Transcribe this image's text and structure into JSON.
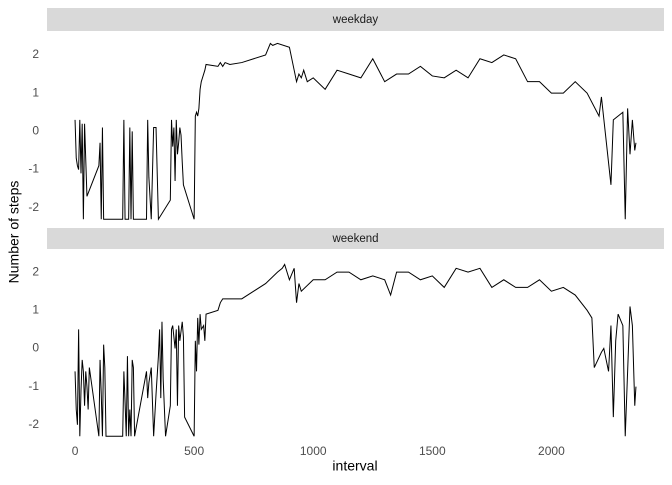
{
  "x_label": "interval",
  "y_label": "Number of steps",
  "chart_data": [
    {
      "type": "line",
      "title": "weekday",
      "color": "#000000",
      "x": [
        0,
        5,
        10,
        15,
        20,
        25,
        30,
        35,
        40,
        50,
        100,
        105,
        110,
        115,
        120,
        150,
        200,
        205,
        210,
        225,
        230,
        235,
        240,
        245,
        300,
        305,
        310,
        320,
        330,
        340,
        350,
        400,
        405,
        410,
        415,
        420,
        425,
        430,
        435,
        440,
        445,
        450,
        455,
        500,
        505,
        510,
        515,
        520,
        525,
        530,
        535,
        545,
        550,
        600,
        610,
        620,
        630,
        650,
        700,
        750,
        800,
        820,
        830,
        850,
        900,
        920,
        930,
        940,
        950,
        960,
        975,
        1000,
        1050,
        1100,
        1150,
        1200,
        1250,
        1300,
        1350,
        1400,
        1450,
        1500,
        1550,
        1600,
        1650,
        1700,
        1750,
        1800,
        1850,
        1900,
        1950,
        2000,
        2050,
        2100,
        2150,
        2200,
        2210,
        2250,
        2260,
        2300,
        2310,
        2320,
        2330,
        2340,
        2350,
        2355
      ],
      "values": [
        0.3,
        -0.7,
        -0.9,
        -1.0,
        0.3,
        -1.1,
        0.2,
        -2.3,
        0.2,
        -1.7,
        -0.9,
        -0.3,
        -2.3,
        0.1,
        -2.3,
        -2.3,
        -2.3,
        0.3,
        -2.3,
        -2.3,
        0.1,
        -2.3,
        0.0,
        -2.3,
        -2.3,
        0.3,
        -1.2,
        -2.3,
        0.1,
        0.1,
        -2.3,
        -1.8,
        0.3,
        -0.4,
        0.1,
        -1.3,
        0.3,
        -0.6,
        -0.3,
        0.1,
        -0.1,
        -0.8,
        -1.4,
        -2.3,
        0.4,
        0.5,
        0.4,
        0.6,
        1.1,
        1.3,
        1.4,
        1.6,
        1.75,
        1.7,
        1.8,
        1.7,
        1.8,
        1.75,
        1.8,
        1.9,
        2.0,
        2.3,
        2.25,
        2.3,
        2.2,
        1.6,
        1.3,
        1.5,
        1.4,
        1.6,
        1.3,
        1.4,
        1.1,
        1.6,
        1.5,
        1.4,
        1.9,
        1.3,
        1.5,
        1.5,
        1.7,
        1.45,
        1.4,
        1.6,
        1.4,
        1.9,
        1.8,
        2.0,
        1.9,
        1.3,
        1.3,
        1.0,
        1.0,
        1.3,
        1.0,
        0.4,
        0.9,
        -1.4,
        0.3,
        0.5,
        -2.3,
        0.6,
        -0.6,
        0.3,
        -0.5,
        -0.3
      ],
      "xlim": [
        -117.75,
        2472.75
      ],
      "ylim": [
        -2.32,
        2.6
      ],
      "yticks": [
        -2,
        -1,
        0,
        1,
        2
      ]
    },
    {
      "type": "line",
      "title": "weekend",
      "color": "#000000",
      "x": [
        0,
        5,
        10,
        15,
        20,
        25,
        30,
        35,
        40,
        45,
        50,
        55,
        60,
        100,
        105,
        110,
        115,
        120,
        125,
        130,
        150,
        200,
        205,
        210,
        215,
        220,
        225,
        230,
        235,
        240,
        245,
        250,
        300,
        305,
        310,
        320,
        330,
        340,
        350,
        355,
        360,
        365,
        370,
        380,
        400,
        405,
        410,
        420,
        425,
        430,
        435,
        440,
        450,
        455,
        460,
        500,
        505,
        510,
        515,
        520,
        525,
        530,
        540,
        545,
        550,
        600,
        610,
        620,
        650,
        700,
        750,
        800,
        850,
        870,
        880,
        900,
        920,
        930,
        940,
        950,
        1000,
        1050,
        1100,
        1150,
        1200,
        1250,
        1300,
        1325,
        1350,
        1400,
        1450,
        1500,
        1550,
        1600,
        1650,
        1700,
        1750,
        1800,
        1850,
        1900,
        1950,
        2000,
        2050,
        2100,
        2150,
        2170,
        2180,
        2210,
        2220,
        2240,
        2250,
        2260,
        2270,
        2280,
        2300,
        2310,
        2330,
        2340,
        2350,
        2355
      ],
      "values": [
        -0.6,
        -1.6,
        -2.0,
        0.5,
        -2.3,
        -1.1,
        -0.3,
        -0.6,
        -1.5,
        -0.6,
        -1.0,
        -1.6,
        -0.5,
        -2.3,
        -0.3,
        -1.2,
        -2.3,
        0.1,
        -0.5,
        -2.3,
        -2.3,
        -2.3,
        -0.6,
        -1.4,
        -2.3,
        -0.2,
        -2.3,
        -1.6,
        -2.3,
        -0.3,
        -0.5,
        -2.3,
        -0.6,
        -1.3,
        -0.9,
        -0.5,
        -2.3,
        -1.2,
        -0.2,
        0.5,
        -1.3,
        0.7,
        -0.8,
        -2.3,
        -1.5,
        0.5,
        0.6,
        0.0,
        0.5,
        -1.5,
        0.6,
        0.2,
        0.7,
        0.3,
        -1.8,
        -2.3,
        0.2,
        -0.6,
        0.8,
        0.1,
        0.9,
        0.5,
        0.6,
        0.2,
        0.9,
        1.0,
        1.2,
        1.3,
        1.3,
        1.3,
        1.5,
        1.7,
        2.0,
        2.1,
        2.2,
        1.8,
        2.1,
        1.2,
        1.7,
        1.5,
        1.8,
        1.8,
        2.0,
        2.0,
        1.8,
        1.9,
        1.8,
        1.4,
        2.0,
        2.0,
        1.8,
        1.9,
        1.6,
        2.1,
        2.0,
        2.1,
        1.6,
        1.8,
        1.6,
        1.6,
        1.8,
        1.5,
        1.6,
        1.4,
        1.0,
        0.8,
        -0.5,
        -0.1,
        0.0,
        -0.6,
        0.6,
        -1.8,
        0.2,
        0.9,
        0.6,
        -2.3,
        1.1,
        0.6,
        -1.5,
        -1.0
      ],
      "xlim": [
        -117.75,
        2472.75
      ],
      "ylim": [
        -2.32,
        2.58
      ],
      "yticks": [
        -2,
        -1,
        0,
        1,
        2
      ],
      "xticks": [
        0,
        500,
        1000,
        1500,
        2000
      ]
    }
  ]
}
